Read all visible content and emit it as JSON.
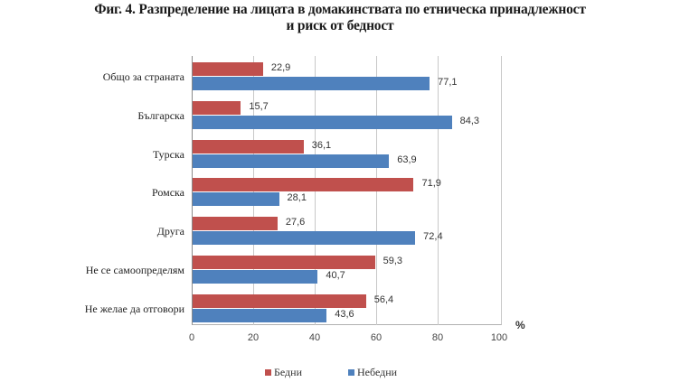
{
  "chart_data": {
    "type": "bar",
    "orientation": "horizontal",
    "title": "Фиг. 4. Разпределение на лицата в домакинствата по етническа принадлежност и риск от бедност",
    "title_lines": [
      "Фиг. 4. Разпределение на лицата в домакинствата по етническа принадлежност",
      "и риск от бедност"
    ],
    "categories": [
      "Общо за страната",
      "Българска",
      "Турска",
      "Ромска",
      "Друга",
      "Не се самоопределям",
      "Не желае да отговори"
    ],
    "series": [
      {
        "name": "Бедни",
        "color": "#C0504D",
        "values": [
          22.9,
          15.7,
          36.1,
          71.9,
          27.6,
          59.3,
          56.4
        ],
        "labels": [
          "22,9",
          "15,7",
          "36,1",
          "71,9",
          "27,6",
          "59,3",
          "56,4"
        ]
      },
      {
        "name": "Небедни",
        "color": "#4F81BD",
        "values": [
          77.1,
          84.3,
          63.9,
          28.1,
          72.4,
          40.7,
          43.6
        ],
        "labels": [
          "77,1",
          "84,3",
          "63,9",
          "28,1",
          "72,4",
          "40,7",
          "43,6"
        ]
      }
    ],
    "xlabel": "%",
    "ylabel": "",
    "xlim": [
      0,
      100
    ],
    "xticks": [
      "0",
      "20",
      "40",
      "60",
      "80",
      "100"
    ],
    "grid": true,
    "legend_position": "bottom"
  },
  "legend": [
    {
      "label": "Бедни",
      "color": "#C0504D"
    },
    {
      "label": "Небедни",
      "color": "#4F81BD"
    }
  ]
}
